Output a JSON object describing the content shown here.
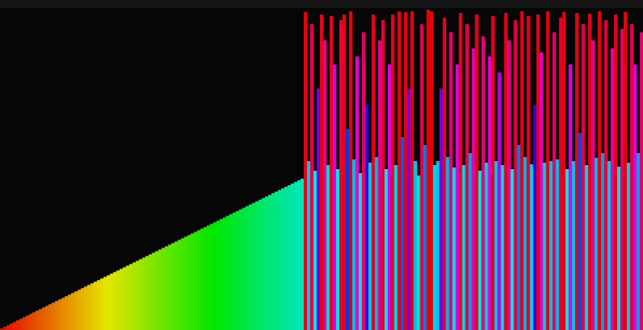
{
  "chart_data": {
    "type": "bar",
    "color_by": "hue",
    "ylim": [
      0,
      400
    ],
    "values": [
      2,
      4,
      6,
      8,
      10,
      12,
      14,
      16,
      18,
      20,
      22,
      24,
      26,
      28,
      30,
      32,
      34,
      36,
      38,
      40,
      42,
      44,
      46,
      48,
      50,
      52,
      54,
      56,
      58,
      60,
      62,
      64,
      66,
      68,
      70,
      72,
      74,
      76,
      78,
      80,
      82,
      84,
      86,
      88,
      90,
      92,
      94,
      96,
      98,
      100,
      102,
      104,
      106,
      108,
      110,
      112,
      114,
      116,
      118,
      120,
      122,
      124,
      126,
      128,
      130,
      132,
      134,
      136,
      138,
      140,
      142,
      144,
      146,
      148,
      150,
      152,
      154,
      156,
      158,
      160,
      162,
      164,
      166,
      168,
      170,
      172,
      174,
      176,
      178,
      180,
      182,
      184,
      186,
      188,
      395,
      210,
      380,
      198,
      300,
      392,
      360,
      205,
      390,
      330,
      200,
      385,
      392,
      250,
      396,
      212,
      340,
      195,
      370,
      280,
      208,
      392,
      215,
      360,
      385,
      200,
      330,
      392,
      205,
      396,
      240,
      395,
      300,
      396,
      210,
      192,
      380,
      230,
      398,
      396,
      205,
      210,
      300,
      388,
      215,
      370,
      202,
      330,
      394,
      205,
      380,
      220,
      350,
      392,
      198,
      365,
      208,
      340,
      390,
      210,
      320,
      205,
      394,
      360,
      200,
      385,
      230,
      396,
      215,
      390,
      206,
      280,
      392,
      345,
      208,
      396,
      210,
      370,
      212,
      388,
      395,
      200,
      330,
      210,
      394,
      245,
      380,
      205,
      393,
      360,
      214,
      396,
      220,
      385,
      210,
      350,
      392,
      203,
      374,
      395,
      208,
      380,
      330,
      220,
      370
    ]
  }
}
